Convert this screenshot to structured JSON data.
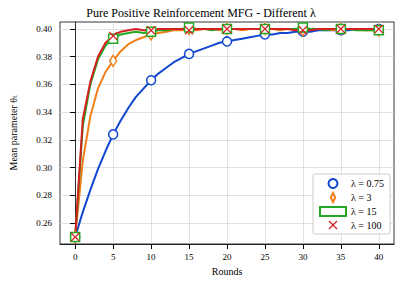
{
  "chart_data": {
    "type": "line",
    "title": "Pure Positive Reinforcement MFG - Different λ",
    "x_label": "Rounds",
    "y_label": "Mean parameter θₜ",
    "x": [
      0,
      1,
      2,
      3,
      4,
      5,
      6,
      7,
      8,
      9,
      10,
      11,
      12,
      13,
      14,
      15,
      16,
      17,
      18,
      19,
      20,
      21,
      22,
      23,
      24,
      25,
      26,
      27,
      28,
      29,
      30,
      31,
      32,
      33,
      34,
      35,
      36,
      37,
      38,
      39,
      40
    ],
    "series": [
      {
        "name": "λ = 0.75",
        "color": "#1046d0",
        "marker": "circle",
        "values": [
          0.25,
          0.268,
          0.284,
          0.299,
          0.312,
          0.324,
          0.334,
          0.343,
          0.351,
          0.357,
          0.363,
          0.368,
          0.372,
          0.376,
          0.379,
          0.382,
          0.384,
          0.386,
          0.388,
          0.39,
          0.391,
          0.392,
          0.393,
          0.394,
          0.395,
          0.396,
          0.396,
          0.397,
          0.397,
          0.398,
          0.398,
          0.398,
          0.399,
          0.399,
          0.399,
          0.399,
          0.399,
          0.4,
          0.4,
          0.4,
          0.4
        ]
      },
      {
        "name": "λ = 3",
        "color": "#f07f1a",
        "marker": "diamond",
        "values": [
          0.25,
          0.305,
          0.337,
          0.357,
          0.369,
          0.377,
          0.384,
          0.389,
          0.392,
          0.394,
          0.396,
          0.397,
          0.398,
          0.399,
          0.399,
          0.4,
          0.399,
          0.4,
          0.4,
          0.399,
          0.4,
          0.4,
          0.399,
          0.4,
          0.4,
          0.4,
          0.4,
          0.399,
          0.4,
          0.4,
          0.399,
          0.4,
          0.4,
          0.4,
          0.399,
          0.4,
          0.4,
          0.4,
          0.399,
          0.399,
          0.399
        ]
      },
      {
        "name": "λ = 15",
        "color": "#22a822",
        "marker": "square",
        "values": [
          0.25,
          0.33,
          0.36,
          0.378,
          0.388,
          0.393,
          0.396,
          0.397,
          0.398,
          0.397,
          0.398,
          0.399,
          0.399,
          0.4,
          0.4,
          0.401,
          0.4,
          0.4,
          0.399,
          0.4,
          0.4,
          0.4,
          0.4,
          0.4,
          0.4,
          0.4,
          0.4,
          0.4,
          0.4,
          0.4,
          0.401,
          0.4,
          0.4,
          0.399,
          0.4,
          0.4,
          0.4,
          0.399,
          0.399,
          0.399,
          0.399
        ]
      },
      {
        "name": "λ = 100",
        "color": "#d42020",
        "marker": "x",
        "values": [
          0.25,
          0.335,
          0.362,
          0.38,
          0.39,
          0.395,
          0.398,
          0.399,
          0.4,
          0.399,
          0.399,
          0.4,
          0.4,
          0.4,
          0.4,
          0.399,
          0.4,
          0.4,
          0.4,
          0.4,
          0.4,
          0.4,
          0.4,
          0.4,
          0.4,
          0.4,
          0.4,
          0.4,
          0.4,
          0.399,
          0.399,
          0.399,
          0.4,
          0.4,
          0.4,
          0.4,
          0.4,
          0.4,
          0.4,
          0.4,
          0.4
        ]
      }
    ],
    "xlim": [
      -2,
      42
    ],
    "xticks": [
      0,
      5,
      10,
      15,
      20,
      25,
      30,
      35,
      40
    ],
    "ylim": [
      0.245,
      0.405
    ],
    "yticks": [
      0.26,
      0.28,
      {
        "value": 0.3,
        "label": "0.30"
      },
      0.32,
      0.34,
      0.36,
      0.38,
      {
        "value": 0.4,
        "label": "0.40"
      }
    ],
    "grid": true,
    "legend": "lower right"
  }
}
